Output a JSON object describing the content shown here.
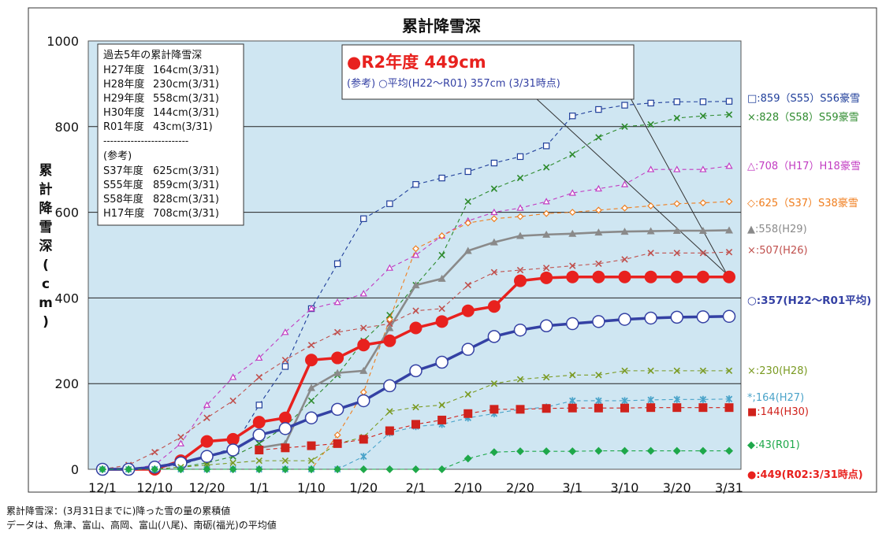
{
  "notes": [
    "累計降雪深：(3月31日までに)降った雪の量の累積値",
    "データは、魚津、富山、高岡、富山(八尾)、南砺(福光)の平均値"
  ],
  "summary_box": {
    "title": "過去5年の累計降雪深",
    "rows": [
      {
        "label": "H27年度",
        "value": "164cm(3/31)"
      },
      {
        "label": "H28年度",
        "value": "230cm(3/31)"
      },
      {
        "label": "H29年度",
        "value": "558cm(3/31)"
      },
      {
        "label": "H30年度",
        "value": "144cm(3/31)"
      },
      {
        "label": "R01年度",
        "value": "43cm(3/31)"
      }
    ],
    "divider": "-------------------------",
    "ref_title": "(参考)",
    "ref_rows": [
      {
        "label": "S37年度",
        "value": "625cm(3/31)"
      },
      {
        "label": "S55年度",
        "value": "859cm(3/31)"
      },
      {
        "label": "S58年度",
        "value": "828cm(3/31)"
      },
      {
        "label": "H17年度",
        "value": "708cm(3/31)"
      }
    ]
  },
  "callout": {
    "headline": "●R2年度 449cm",
    "subline": "(参考) ○平均(H22～R01) 357cm (3/31時点)"
  },
  "colors": {
    "plot_bg": "#cfe6f2",
    "r2": "#e8211e",
    "avg": "#3441a4",
    "h29": "#8a8a8a",
    "h26": "#c0504d",
    "h28": "#7a9a22",
    "h27": "#4aa3c9",
    "h30": "#d0221c",
    "r01": "#1ea84a",
    "s55": "#1f3e9a",
    "s58": "#2e8b2e",
    "h17": "#c23cc2",
    "s37": "#f07e1e"
  },
  "chart_data": {
    "type": "line",
    "title": "累計降雪深",
    "ylabel": "累計降雪深(cm)",
    "xlabel": "",
    "ylim": [
      0,
      1000
    ],
    "yticks": [
      0,
      200,
      400,
      600,
      800,
      1000
    ],
    "grid": true,
    "legend_placement": "right",
    "x": [
      "12/1",
      "12/5",
      "12/10",
      "12/15",
      "12/20",
      "12/25",
      "1/1",
      "1/5",
      "1/10",
      "1/15",
      "1/20",
      "1/25",
      "2/1",
      "2/5",
      "2/10",
      "2/15",
      "2/20",
      "2/25",
      "3/1",
      "3/5",
      "3/10",
      "3/15",
      "3/20",
      "3/25",
      "3/31"
    ],
    "xtick_labels": [
      {
        "label": "12/1",
        "x": "12/1"
      },
      {
        "label": "12/10",
        "x": "12/10"
      },
      {
        "label": "12/20",
        "x": "12/20"
      },
      {
        "label": "1/1",
        "x": "1/1"
      },
      {
        "label": "1/10",
        "x": "1/10"
      },
      {
        "label": "1/20",
        "x": "1/20"
      },
      {
        "label": "2/1",
        "x": "2/1"
      },
      {
        "label": "2/10",
        "x": "2/10"
      },
      {
        "label": "2/20",
        "x": "2/20"
      },
      {
        "label": "3/1",
        "x": "3/1"
      },
      {
        "label": "3/10",
        "x": "3/10"
      },
      {
        "label": "3/20",
        "x": "3/20"
      },
      {
        "label": "3/31",
        "x": "3/31"
      }
    ],
    "series": [
      {
        "key": "s55",
        "label": "□:859（S55）S56豪雪",
        "marker": "open-square",
        "dash": true,
        "start": 0,
        "values": [
          0,
          0,
          5,
          10,
          30,
          50,
          150,
          240,
          375,
          480,
          585,
          620,
          665,
          680,
          695,
          715,
          730,
          755,
          825,
          840,
          850,
          855,
          858,
          858,
          859
        ]
      },
      {
        "key": "s58",
        "label": "×:828（S58）S59豪雪",
        "marker": "x",
        "dash": true,
        "start": 0,
        "values": [
          0,
          0,
          0,
          5,
          15,
          30,
          60,
          100,
          160,
          220,
          300,
          360,
          430,
          500,
          625,
          655,
          680,
          705,
          735,
          775,
          800,
          805,
          820,
          825,
          828
        ]
      },
      {
        "key": "h17",
        "label": "△:708（H17）H18豪雪",
        "marker": "open-triangle",
        "dash": true,
        "start": 0,
        "values": [
          0,
          0,
          10,
          60,
          150,
          215,
          260,
          320,
          375,
          390,
          410,
          470,
          500,
          545,
          580,
          600,
          610,
          625,
          645,
          655,
          665,
          700,
          700,
          700,
          708
        ]
      },
      {
        "key": "s37",
        "label": "◇:625（S37）S38豪雪",
        "marker": "open-diamond",
        "dash": true,
        "start": 0,
        "values": [
          0,
          0,
          0,
          0,
          0,
          0,
          0,
          0,
          0,
          80,
          180,
          350,
          515,
          545,
          575,
          585,
          590,
          597,
          600,
          605,
          610,
          615,
          620,
          622,
          625
        ]
      },
      {
        "key": "h29",
        "label": "▲:558(H29)",
        "marker": "filled-triangle",
        "dash": false,
        "start": 6,
        "values": [
          null,
          null,
          null,
          null,
          null,
          null,
          50,
          60,
          190,
          225,
          230,
          330,
          430,
          445,
          510,
          530,
          545,
          548,
          550,
          553,
          555,
          556,
          557,
          557,
          558
        ]
      },
      {
        "key": "h26",
        "label": "×:507(H26)",
        "marker": "x",
        "dash": true,
        "start": 0,
        "values": [
          0,
          10,
          40,
          75,
          120,
          160,
          215,
          255,
          290,
          320,
          330,
          340,
          370,
          375,
          430,
          460,
          465,
          470,
          475,
          480,
          490,
          505,
          505,
          505,
          507
        ]
      },
      {
        "key": "r2",
        "label": "●:449(R02:3/31時点)",
        "marker": "filled-circle",
        "dash": false,
        "start": 0,
        "values": [
          0,
          0,
          0,
          20,
          65,
          70,
          110,
          120,
          255,
          260,
          290,
          300,
          330,
          345,
          370,
          380,
          440,
          447,
          449,
          449,
          449,
          449,
          449,
          449,
          449
        ]
      },
      {
        "key": "avg",
        "label": "○:357(H22～R01平均)",
        "marker": "open-circle",
        "dash": false,
        "start": 0,
        "values": [
          0,
          0,
          5,
          15,
          30,
          45,
          80,
          95,
          120,
          140,
          160,
          195,
          230,
          250,
          280,
          310,
          325,
          335,
          340,
          345,
          350,
          353,
          355,
          356,
          357
        ]
      },
      {
        "key": "h28",
        "label": "×:230(H28)",
        "marker": "x",
        "dash": true,
        "start": 0,
        "values": [
          0,
          0,
          0,
          5,
          10,
          15,
          20,
          20,
          20,
          60,
          75,
          135,
          145,
          150,
          175,
          200,
          210,
          215,
          220,
          220,
          230,
          230,
          230,
          230,
          230
        ]
      },
      {
        "key": "h27",
        "label": "*;164(H27)",
        "marker": "asterisk",
        "dash": true,
        "start": 0,
        "values": [
          0,
          0,
          0,
          0,
          0,
          0,
          0,
          0,
          0,
          0,
          30,
          85,
          100,
          105,
          120,
          130,
          140,
          145,
          160,
          160,
          160,
          162,
          163,
          163,
          164
        ]
      },
      {
        "key": "h30",
        "label": "■:144(H30)",
        "marker": "filled-square",
        "dash": true,
        "start": 6,
        "values": [
          null,
          null,
          null,
          null,
          null,
          null,
          45,
          50,
          55,
          60,
          70,
          90,
          105,
          115,
          130,
          140,
          140,
          142,
          143,
          143,
          143,
          144,
          144,
          144,
          144
        ]
      },
      {
        "key": "r01",
        "label": "◆:43(R01)",
        "marker": "filled-diamond",
        "dash": true,
        "start": 0,
        "values": [
          0,
          0,
          0,
          0,
          0,
          0,
          0,
          0,
          0,
          0,
          0,
          0,
          0,
          0,
          25,
          40,
          42,
          42,
          42,
          43,
          43,
          43,
          43,
          43,
          43
        ]
      }
    ]
  }
}
